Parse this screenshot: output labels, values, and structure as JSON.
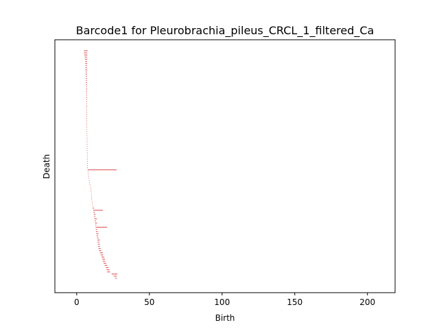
{
  "chart_data": {
    "type": "barcode",
    "title": "Barcode1 for Pleurobrachia_pileus_CRCL_1_filtered_Ca",
    "xlabel": "Birth",
    "ylabel": "Death",
    "xlim": [
      -15,
      219
    ],
    "x_ticks": [
      0,
      50,
      100,
      150,
      200
    ],
    "y_ticks": [],
    "grid": false,
    "legend": "none",
    "bar_color": "#e06666",
    "bars": [
      [
        5,
        7.5
      ],
      [
        5,
        7.2
      ],
      [
        5.2,
        7.4
      ],
      [
        5.5,
        7.1
      ],
      [
        5.6,
        7.3
      ],
      [
        5.8,
        7
      ],
      [
        5.9,
        7.2
      ],
      [
        6,
        7
      ],
      [
        6,
        7.1
      ],
      [
        6,
        7.3
      ],
      [
        6.1,
        7
      ],
      [
        6.1,
        7.2
      ],
      [
        6.2,
        7
      ],
      [
        6.2,
        7.1
      ],
      [
        6.3,
        7
      ],
      [
        6.3,
        7.2
      ],
      [
        6.3,
        7.1
      ],
      [
        6.4,
        7
      ],
      [
        6.4,
        7.2
      ],
      [
        6.4,
        7
      ],
      [
        6.5,
        7.1
      ],
      [
        6.5,
        7
      ],
      [
        6.5,
        7.2
      ],
      [
        6.5,
        7
      ],
      [
        6.6,
        7.1
      ],
      [
        6.6,
        7
      ],
      [
        6.6,
        7.2
      ],
      [
        6.6,
        7
      ],
      [
        6.7,
        7.1
      ],
      [
        6.7,
        7
      ],
      [
        6.7,
        7.2
      ],
      [
        6.7,
        7
      ],
      [
        6.7,
        7.1
      ],
      [
        6.8,
        7
      ],
      [
        6.8,
        7.2
      ],
      [
        6.8,
        7
      ],
      [
        6.8,
        7.1
      ],
      [
        6.8,
        7
      ],
      [
        6.9,
        7.2
      ],
      [
        6.9,
        7
      ],
      [
        6.9,
        7.1
      ],
      [
        6.9,
        7
      ],
      [
        7,
        7.2
      ],
      [
        7,
        7.1
      ],
      [
        7,
        7.3
      ],
      [
        7,
        7.2
      ],
      [
        7,
        7.4
      ],
      [
        7,
        7.2
      ],
      [
        7.1,
        7.3
      ],
      [
        7.1,
        7.2
      ],
      [
        7.1,
        7.4
      ],
      [
        7.1,
        7.3
      ],
      [
        7.2,
        7.4
      ],
      [
        7.2,
        7.3
      ],
      [
        7.2,
        7.5
      ],
      [
        7.3,
        7.4
      ],
      [
        7.5,
        27.5
      ],
      [
        7.6,
        8
      ],
      [
        7.8,
        8.1
      ],
      [
        8,
        8.3
      ],
      [
        8,
        8.2
      ],
      [
        8.5,
        8.8
      ],
      [
        8.6,
        8.8
      ],
      [
        8.9,
        9.2
      ],
      [
        9.4,
        9.7
      ],
      [
        9.6,
        9.9
      ],
      [
        9.7,
        10
      ],
      [
        9.9,
        10.2
      ],
      [
        10,
        10.3
      ],
      [
        10.1,
        10.4
      ],
      [
        10.2,
        10.5
      ],
      [
        10.4,
        10.7
      ],
      [
        10.6,
        11
      ],
      [
        10.8,
        11.2
      ],
      [
        11,
        12
      ],
      [
        11.3,
        18
      ],
      [
        11.5,
        12.5
      ],
      [
        11.8,
        13
      ],
      [
        12,
        12.8
      ],
      [
        12.2,
        14
      ],
      [
        12.4,
        13.2
      ],
      [
        12.6,
        14
      ],
      [
        12.8,
        13.5
      ],
      [
        13,
        21
      ],
      [
        13.1,
        14
      ],
      [
        13.3,
        14.5
      ],
      [
        13.5,
        15
      ],
      [
        13.7,
        14.8
      ],
      [
        14,
        15
      ],
      [
        14.2,
        16
      ],
      [
        14.4,
        15.5
      ],
      [
        14.6,
        15.8
      ],
      [
        14.8,
        16
      ],
      [
        15,
        16.5
      ],
      [
        15.4,
        17
      ],
      [
        16,
        18
      ],
      [
        16.5,
        18.2
      ],
      [
        17,
        19
      ],
      [
        17.5,
        19.5
      ],
      [
        18,
        19.6
      ],
      [
        18.5,
        20.3
      ],
      [
        19.2,
        21
      ],
      [
        20,
        22
      ],
      [
        20.5,
        22.6
      ],
      [
        21,
        23
      ],
      [
        24,
        28
      ],
      [
        25.5,
        27.5
      ],
      [
        26.5,
        27.5
      ]
    ]
  }
}
